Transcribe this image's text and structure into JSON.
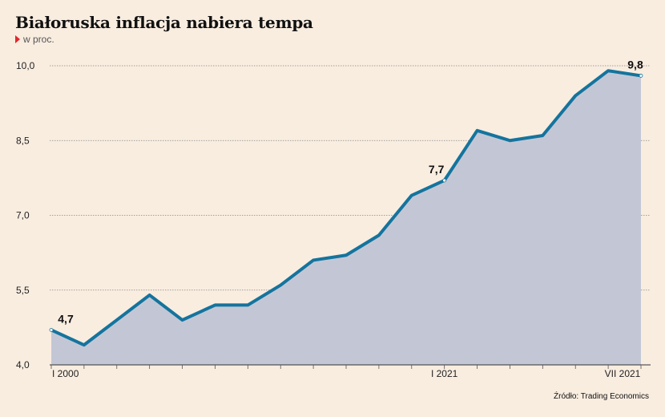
{
  "header": {
    "title": "Białoruska inflacja nabiera tempa",
    "subtitle": "w proc."
  },
  "source": "Źródło: Trading Economics",
  "colors": {
    "line": "#14749e",
    "area": "#c3c7d5",
    "grid": "#888888",
    "marker": "#e3262b",
    "background": "#f9ede0"
  },
  "chart_data": {
    "type": "area",
    "title": "Białoruska inflacja nabiera tempa",
    "ylabel": "w proc.",
    "ylim": [
      4.0,
      10.0
    ],
    "yticks": [
      "10,0",
      "8,5",
      "7,0",
      "5,5",
      "4,0"
    ],
    "ytick_values": [
      10.0,
      8.5,
      7.0,
      5.5,
      4.0
    ],
    "grid": true,
    "x_labels": [
      {
        "index": 0,
        "label": "I 2000"
      },
      {
        "index": 12,
        "label": "I 2021"
      },
      {
        "index": 18,
        "label": "VII 2021"
      }
    ],
    "series": [
      {
        "values": [
          4.7,
          4.4,
          4.9,
          5.4,
          4.9,
          5.2,
          5.2,
          5.6,
          6.1,
          6.2,
          6.6,
          7.4,
          7.7,
          8.7,
          8.5,
          8.6,
          9.4,
          9.9,
          9.8
        ]
      }
    ],
    "data_labels": [
      {
        "index": 0,
        "text": "4,7"
      },
      {
        "index": 12,
        "text": "7,7"
      },
      {
        "index": 18,
        "text": "9,8"
      }
    ]
  }
}
